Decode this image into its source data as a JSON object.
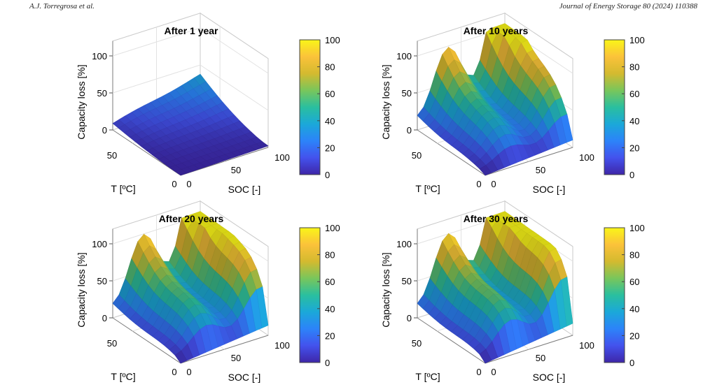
{
  "header": {
    "authors": "A.J. Torregrosa et al.",
    "journal": "Journal of Energy Storage 80 (2024) 110388"
  },
  "colors": {
    "colormap": [
      "#3e26a8",
      "#4352ed",
      "#2c83f9",
      "#1ba8d9",
      "#2abf9f",
      "#79c65b",
      "#d4ba2f",
      "#fbc23a",
      "#f9f518"
    ],
    "axis": "#c9c9c9",
    "text": "#000000"
  },
  "chart_data": [
    {
      "type": "surface",
      "title": "After 1 year",
      "xlabel": "SOC [-]",
      "ylabel": "T [ºC]",
      "zlabel": "Capacity loss [%]",
      "xticks": [
        "0",
        "50",
        "100"
      ],
      "yticks": [
        "0",
        "50"
      ],
      "zticks": [
        "0",
        "50",
        "100"
      ],
      "zlim": [
        0,
        120
      ],
      "colorbar": {
        "ticks": [
          "0",
          "20",
          "40",
          "60",
          "80",
          "100"
        ],
        "limits": [
          0,
          100
        ]
      },
      "soc_range": [
        0,
        100
      ],
      "temp_range": [
        0,
        70
      ],
      "peak_capacity_loss": 35
    },
    {
      "type": "surface",
      "title": "After 10 years",
      "xlabel": "SOC [-]",
      "ylabel": "T [ºC]",
      "zlabel": "Capacity loss [%]",
      "xticks": [
        "0",
        "50",
        "100"
      ],
      "yticks": [
        "0",
        "50"
      ],
      "zticks": [
        "0",
        "50",
        "100"
      ],
      "zlim": [
        0,
        120
      ],
      "colorbar": {
        "ticks": [
          "0",
          "20",
          "40",
          "60",
          "80",
          "100"
        ],
        "limits": [
          0,
          100
        ]
      },
      "soc_range": [
        0,
        100
      ],
      "temp_range": [
        0,
        70
      ],
      "peak_capacity_loss": 100
    },
    {
      "type": "surface",
      "title": "After 20 years",
      "xlabel": "SOC [-]",
      "ylabel": "T [ºC]",
      "zlabel": "Capacity loss [%]",
      "xticks": [
        "0",
        "50",
        "100"
      ],
      "yticks": [
        "0",
        "50"
      ],
      "zticks": [
        "0",
        "50",
        "100"
      ],
      "zlim": [
        0,
        120
      ],
      "colorbar": {
        "ticks": [
          "0",
          "20",
          "40",
          "60",
          "80",
          "100"
        ],
        "limits": [
          0,
          100
        ]
      },
      "soc_range": [
        0,
        100
      ],
      "temp_range": [
        0,
        70
      ],
      "peak_capacity_loss": 100
    },
    {
      "type": "surface",
      "title": "After 30 years",
      "xlabel": "SOC [-]",
      "ylabel": "T [ºC]",
      "zlabel": "Capacity loss [%]",
      "xticks": [
        "0",
        "50",
        "100"
      ],
      "yticks": [
        "0",
        "50"
      ],
      "zticks": [
        "0",
        "50",
        "100"
      ],
      "zlim": [
        0,
        120
      ],
      "colorbar": {
        "ticks": [
          "0",
          "20",
          "40",
          "60",
          "80",
          "100"
        ],
        "limits": [
          0,
          100
        ]
      },
      "soc_range": [
        0,
        100
      ],
      "temp_range": [
        0,
        70
      ],
      "peak_capacity_loss": 100
    }
  ]
}
